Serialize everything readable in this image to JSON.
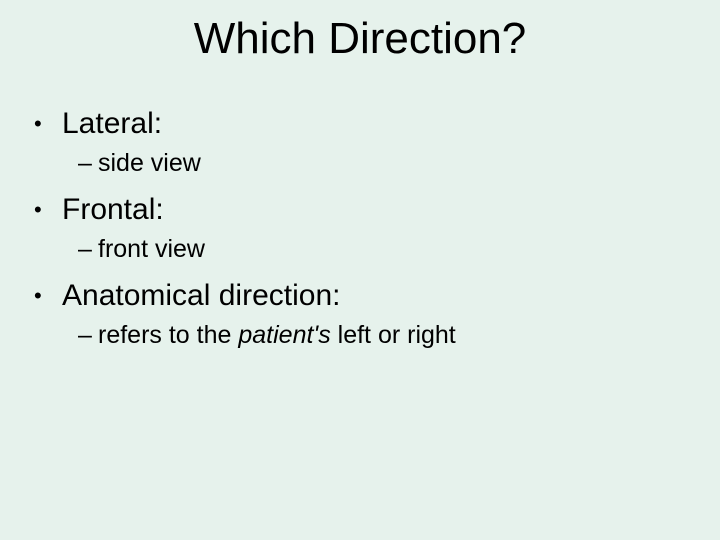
{
  "background_color": "#e6f2ec",
  "text_color": "#000000",
  "title": {
    "text": "Which Direction?",
    "fontsize": 44,
    "align": "center"
  },
  "bullets": [
    {
      "marker": "•",
      "text": "Lateral:",
      "sub": {
        "marker": "–",
        "text": "side view"
      }
    },
    {
      "marker": "•",
      "text": "Frontal:",
      "sub": {
        "marker": "–",
        "text": "front view"
      }
    },
    {
      "marker": "•",
      "text": "Anatomical direction:",
      "sub": {
        "marker": "–",
        "prefix": "refers to the ",
        "italic": "patient's",
        "suffix": " left or right"
      }
    }
  ],
  "typography": {
    "font_family": "Comic Sans MS",
    "bullet_fontsize": 30,
    "sub_fontsize": 25
  }
}
